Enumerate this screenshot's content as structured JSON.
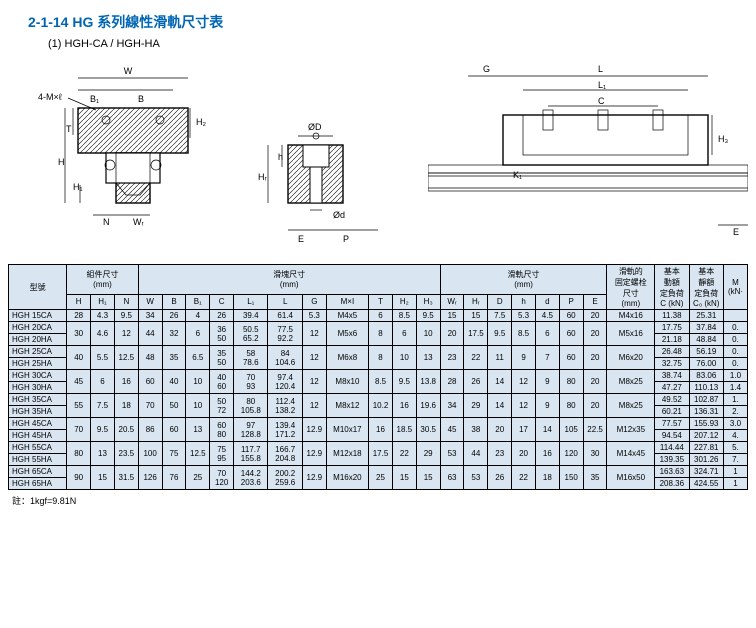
{
  "title": "2-1-14 HG 系列線性滑軌尺寸表",
  "subtitle": "(1) HGH-CA / HGH-HA",
  "footnote": "註：1kgf=9.81N",
  "diagram_labels": {
    "d1": {
      "w": "W",
      "fourM": "4-M×ℓ",
      "b1": "B₁",
      "b": "B",
      "t": "T",
      "h": "H",
      "h1": "H₁",
      "h2": "H₂",
      "n": "N",
      "wr": "Wᵣ"
    },
    "d2": {
      "od": "ØD",
      "hr": "Hᵣ",
      "h": "h",
      "od2": "Ød",
      "e": "E",
      "p": "P"
    },
    "d3": {
      "g": "G",
      "l": "L",
      "l1": "L₁",
      "c": "C",
      "k1": "K₁",
      "h3": "H₃",
      "e": "E"
    }
  },
  "colgroups": {
    "model": "型號",
    "assembly": "組件尺寸\n(mm)",
    "block": "滑塊尺寸\n(mm)",
    "rail": "滑軌尺寸\n(mm)",
    "bolt": "滑軌的\n固定螺栓\n尺寸\n(mm)",
    "cdyn": "基本\n動額\n定負荷\nC (kN)",
    "cstat": "基本\n靜額\n定負荷\nC₀ (kN)",
    "m": "M\n(kN·"
  },
  "cols": [
    "H",
    "H₁",
    "N",
    "W",
    "B",
    "B₁",
    "C",
    "L₁",
    "L",
    "G",
    "M×I",
    "T",
    "H₂",
    "H₃",
    "Wᵣ",
    "Hᵣ",
    "D",
    "h",
    "d",
    "P",
    "E",
    "",
    "",
    "",
    ""
  ],
  "cols2": {
    "bolt_hdr": "",
    "c": "",
    "c0": "",
    "m": ""
  },
  "rows": [
    {
      "models": [
        "HGH 15CA"
      ],
      "assembly": [
        "28",
        "4.3",
        "9.5"
      ],
      "block": [
        "34",
        "26",
        "4",
        "26",
        "39.4",
        "61.4",
        "5.3",
        "M4x5",
        "6",
        "8.5",
        "9.5"
      ],
      "rail": [
        "15",
        "15",
        "7.5",
        "5.3",
        "4.5",
        "60",
        "20"
      ],
      "bolt": "M4x16",
      "c": [
        "11.38"
      ],
      "c0": [
        "25.31"
      ],
      "m": [
        ""
      ]
    },
    {
      "models": [
        "HGH 20CA",
        "HGH 20HA"
      ],
      "assembly": [
        "30",
        "4.6",
        "12"
      ],
      "block": [
        "44",
        "32",
        "6",
        "36\n50",
        "50.5\n65.2",
        "77.5\n92.2",
        "12",
        "M5x6",
        "8",
        "6",
        "10"
      ],
      "rail": [
        "20",
        "17.5",
        "9.5",
        "8.5",
        "6",
        "60",
        "20"
      ],
      "bolt": "M5x16",
      "c": [
        "17.75",
        "21.18"
      ],
      "c0": [
        "37.84",
        "48.84"
      ],
      "m": [
        "0.",
        "0."
      ]
    },
    {
      "models": [
        "HGH 25CA",
        "HGH 25HA"
      ],
      "assembly": [
        "40",
        "5.5",
        "12.5"
      ],
      "block": [
        "48",
        "35",
        "6.5",
        "35\n50",
        "58\n78.6",
        "84\n104.6",
        "12",
        "M6x8",
        "8",
        "10",
        "13"
      ],
      "rail": [
        "23",
        "22",
        "11",
        "9",
        "7",
        "60",
        "20"
      ],
      "bolt": "M6x20",
      "c": [
        "26.48",
        "32.75"
      ],
      "c0": [
        "56.19",
        "76.00"
      ],
      "m": [
        "0.",
        "0."
      ]
    },
    {
      "models": [
        "HGH 30CA",
        "HGH 30HA"
      ],
      "assembly": [
        "45",
        "6",
        "16"
      ],
      "block": [
        "60",
        "40",
        "10",
        "40\n60",
        "70\n93",
        "97.4\n120.4",
        "12",
        "M8x10",
        "8.5",
        "9.5",
        "13.8"
      ],
      "rail": [
        "28",
        "26",
        "14",
        "12",
        "9",
        "80",
        "20"
      ],
      "bolt": "M8x25",
      "c": [
        "38.74",
        "47.27"
      ],
      "c0": [
        "83.06",
        "110.13"
      ],
      "m": [
        "1.0",
        "1.4"
      ]
    },
    {
      "models": [
        "HGH 35CA",
        "HGH 35HA"
      ],
      "assembly": [
        "55",
        "7.5",
        "18"
      ],
      "block": [
        "70",
        "50",
        "10",
        "50\n72",
        "80\n105.8",
        "112.4\n138.2",
        "12",
        "M8x12",
        "10.2",
        "16",
        "19.6"
      ],
      "rail": [
        "34",
        "29",
        "14",
        "12",
        "9",
        "80",
        "20"
      ],
      "bolt": "M8x25",
      "c": [
        "49.52",
        "60.21"
      ],
      "c0": [
        "102.87",
        "136.31"
      ],
      "m": [
        "1.",
        "2."
      ]
    },
    {
      "models": [
        "HGH 45CA",
        "HGH 45HA"
      ],
      "assembly": [
        "70",
        "9.5",
        "20.5"
      ],
      "block": [
        "86",
        "60",
        "13",
        "60\n80",
        "97\n128.8",
        "139.4\n171.2",
        "12.9",
        "M10x17",
        "16",
        "18.5",
        "30.5"
      ],
      "rail": [
        "45",
        "38",
        "20",
        "17",
        "14",
        "105",
        "22.5"
      ],
      "bolt": "M12x35",
      "c": [
        "77.57",
        "94.54"
      ],
      "c0": [
        "155.93",
        "207.12"
      ],
      "m": [
        "3.0",
        "4."
      ]
    },
    {
      "models": [
        "HGH 55CA",
        "HGH 55HA"
      ],
      "assembly": [
        "80",
        "13",
        "23.5"
      ],
      "block": [
        "100",
        "75",
        "12.5",
        "75\n95",
        "117.7\n155.8",
        "166.7\n204.8",
        "12.9",
        "M12x18",
        "17.5",
        "22",
        "29"
      ],
      "rail": [
        "53",
        "44",
        "23",
        "20",
        "16",
        "120",
        "30"
      ],
      "bolt": "M14x45",
      "c": [
        "114.44",
        "139.35"
      ],
      "c0": [
        "227.81",
        "301.26"
      ],
      "m": [
        "5.",
        "7."
      ]
    },
    {
      "models": [
        "HGH 65CA",
        "HGH 65HA"
      ],
      "assembly": [
        "90",
        "15",
        "31.5"
      ],
      "block": [
        "126",
        "76",
        "25",
        "70\n120",
        "144.2\n203.6",
        "200.2\n259.6",
        "12.9",
        "M16x20",
        "25",
        "15",
        "15"
      ],
      "rail": [
        "63",
        "53",
        "26",
        "22",
        "18",
        "150",
        "35"
      ],
      "bolt": "M16x50",
      "c": [
        "163.63",
        "208.36"
      ],
      "c0": [
        "324.71",
        "424.55"
      ],
      "m": [
        "1",
        "1"
      ]
    }
  ]
}
